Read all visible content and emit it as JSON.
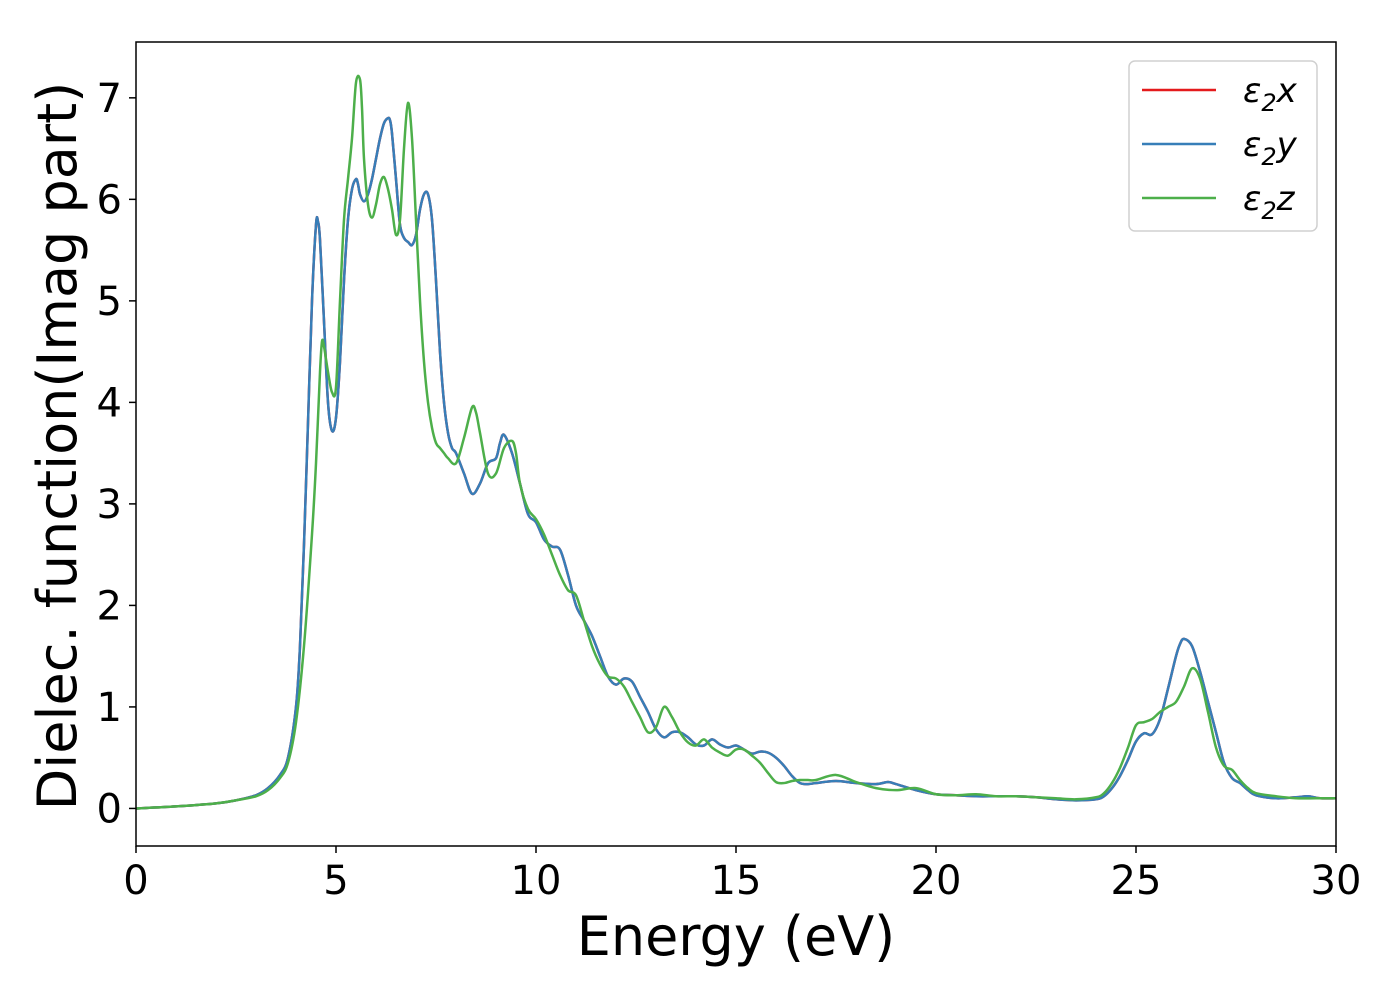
{
  "chart_data": {
    "type": "line",
    "title": "",
    "xlabel": "Energy (eV)",
    "ylabel": "Dielec. function(Imag part)",
    "xlim": [
      0,
      30
    ],
    "ylim": [
      -0.37,
      7.55
    ],
    "xticks": [
      0,
      5,
      10,
      15,
      20,
      25,
      30
    ],
    "xtick_labels": [
      "0",
      "5",
      "10",
      "15",
      "20",
      "25",
      "30"
    ],
    "yticks": [
      0,
      1,
      2,
      3,
      4,
      5,
      6,
      7
    ],
    "ytick_labels": [
      "0",
      "1",
      "2",
      "3",
      "4",
      "5",
      "6",
      "7"
    ],
    "grid": false,
    "legend_position": "top-right",
    "series": [
      {
        "name": "ε₂x",
        "legend_base": "ε",
        "legend_sub": "2",
        "legend_suffix": "x",
        "color": "#e41a1c",
        "x": [
          0,
          1,
          2,
          2.5,
          3,
          3.3,
          3.6,
          3.8,
          4.0,
          4.1,
          4.2,
          4.3,
          4.4,
          4.5,
          4.55,
          4.6,
          4.7,
          4.8,
          4.9,
          5.0,
          5.1,
          5.2,
          5.3,
          5.4,
          5.5,
          5.55,
          5.6,
          5.7,
          5.8,
          5.9,
          6.0,
          6.1,
          6.2,
          6.3,
          6.35,
          6.4,
          6.5,
          6.6,
          6.7,
          6.8,
          6.9,
          7.0,
          7.1,
          7.2,
          7.3,
          7.4,
          7.5,
          7.6,
          7.7,
          7.8,
          7.9,
          8.0,
          8.2,
          8.4,
          8.6,
          8.8,
          9.0,
          9.1,
          9.2,
          9.4,
          9.6,
          9.8,
          10.0,
          10.2,
          10.4,
          10.6,
          10.8,
          11.0,
          11.2,
          11.4,
          11.6,
          11.8,
          12.0,
          12.2,
          12.4,
          12.6,
          12.8,
          13.0,
          13.2,
          13.4,
          13.6,
          13.8,
          14.0,
          14.2,
          14.4,
          14.6,
          14.8,
          15.0,
          15.2,
          15.4,
          15.6,
          15.8,
          16.0,
          16.2,
          16.4,
          16.6,
          16.8,
          17.0,
          17.5,
          18.0,
          18.5,
          18.8,
          19.0,
          19.5,
          20.0,
          20.5,
          21.0,
          21.5,
          22.0,
          22.5,
          23.0,
          23.5,
          24.0,
          24.2,
          24.4,
          24.6,
          24.8,
          25.0,
          25.2,
          25.4,
          25.6,
          25.8,
          26.0,
          26.1,
          26.2,
          26.4,
          26.6,
          26.8,
          27.0,
          27.2,
          27.4,
          27.6,
          27.8,
          28.0,
          28.5,
          29.0,
          29.3,
          29.6,
          30
        ],
        "y": [
          0.0,
          0.02,
          0.05,
          0.08,
          0.13,
          0.2,
          0.33,
          0.5,
          1.0,
          1.6,
          2.6,
          3.8,
          5.0,
          5.75,
          5.78,
          5.6,
          4.8,
          4.0,
          3.72,
          3.85,
          4.4,
          5.2,
          5.8,
          6.1,
          6.2,
          6.15,
          6.05,
          5.98,
          6.05,
          6.2,
          6.4,
          6.6,
          6.75,
          6.8,
          6.78,
          6.65,
          6.2,
          5.75,
          5.62,
          5.58,
          5.55,
          5.65,
          5.9,
          6.05,
          6.05,
          5.8,
          5.2,
          4.5,
          4.0,
          3.7,
          3.55,
          3.5,
          3.3,
          3.1,
          3.2,
          3.4,
          3.45,
          3.6,
          3.68,
          3.5,
          3.2,
          2.9,
          2.82,
          2.65,
          2.58,
          2.55,
          2.3,
          2.0,
          1.85,
          1.7,
          1.5,
          1.3,
          1.22,
          1.28,
          1.25,
          1.1,
          0.95,
          0.78,
          0.7,
          0.75,
          0.75,
          0.7,
          0.63,
          0.62,
          0.68,
          0.63,
          0.6,
          0.62,
          0.58,
          0.54,
          0.56,
          0.55,
          0.5,
          0.42,
          0.32,
          0.25,
          0.24,
          0.25,
          0.27,
          0.25,
          0.24,
          0.26,
          0.24,
          0.18,
          0.14,
          0.13,
          0.12,
          0.12,
          0.12,
          0.11,
          0.09,
          0.08,
          0.09,
          0.12,
          0.2,
          0.32,
          0.48,
          0.66,
          0.74,
          0.73,
          0.88,
          1.18,
          1.5,
          1.62,
          1.67,
          1.6,
          1.35,
          1.05,
          0.75,
          0.45,
          0.3,
          0.25,
          0.18,
          0.13,
          0.1,
          0.11,
          0.12,
          0.1,
          0.1
        ]
      },
      {
        "name": "ε₂y",
        "legend_base": "ε",
        "legend_sub": "2",
        "legend_suffix": "y",
        "color": "#377eb8",
        "x": [
          0,
          1,
          2,
          2.5,
          3,
          3.3,
          3.6,
          3.8,
          4.0,
          4.1,
          4.2,
          4.3,
          4.4,
          4.5,
          4.55,
          4.6,
          4.7,
          4.8,
          4.9,
          5.0,
          5.1,
          5.2,
          5.3,
          5.4,
          5.5,
          5.55,
          5.6,
          5.7,
          5.8,
          5.9,
          6.0,
          6.1,
          6.2,
          6.3,
          6.35,
          6.4,
          6.5,
          6.6,
          6.7,
          6.8,
          6.9,
          7.0,
          7.1,
          7.2,
          7.3,
          7.4,
          7.5,
          7.6,
          7.7,
          7.8,
          7.9,
          8.0,
          8.2,
          8.4,
          8.6,
          8.8,
          9.0,
          9.1,
          9.2,
          9.4,
          9.6,
          9.8,
          10.0,
          10.2,
          10.4,
          10.6,
          10.8,
          11.0,
          11.2,
          11.4,
          11.6,
          11.8,
          12.0,
          12.2,
          12.4,
          12.6,
          12.8,
          13.0,
          13.2,
          13.4,
          13.6,
          13.8,
          14.0,
          14.2,
          14.4,
          14.6,
          14.8,
          15.0,
          15.2,
          15.4,
          15.6,
          15.8,
          16.0,
          16.2,
          16.4,
          16.6,
          16.8,
          17.0,
          17.5,
          18.0,
          18.5,
          18.8,
          19.0,
          19.5,
          20.0,
          20.5,
          21.0,
          21.5,
          22.0,
          22.5,
          23.0,
          23.5,
          24.0,
          24.2,
          24.4,
          24.6,
          24.8,
          25.0,
          25.2,
          25.4,
          25.6,
          25.8,
          26.0,
          26.1,
          26.2,
          26.4,
          26.6,
          26.8,
          27.0,
          27.2,
          27.4,
          27.6,
          27.8,
          28.0,
          28.5,
          29.0,
          29.3,
          29.6,
          30
        ],
        "y": [
          0.0,
          0.02,
          0.05,
          0.08,
          0.13,
          0.2,
          0.33,
          0.5,
          1.0,
          1.6,
          2.6,
          3.8,
          5.0,
          5.75,
          5.78,
          5.6,
          4.8,
          4.0,
          3.72,
          3.85,
          4.4,
          5.2,
          5.8,
          6.1,
          6.2,
          6.15,
          6.05,
          5.98,
          6.05,
          6.2,
          6.4,
          6.6,
          6.75,
          6.8,
          6.78,
          6.65,
          6.2,
          5.75,
          5.62,
          5.58,
          5.55,
          5.65,
          5.9,
          6.05,
          6.05,
          5.8,
          5.2,
          4.5,
          4.0,
          3.7,
          3.55,
          3.5,
          3.3,
          3.1,
          3.2,
          3.4,
          3.45,
          3.6,
          3.68,
          3.5,
          3.2,
          2.9,
          2.82,
          2.65,
          2.58,
          2.55,
          2.3,
          2.0,
          1.85,
          1.7,
          1.5,
          1.3,
          1.22,
          1.28,
          1.25,
          1.1,
          0.95,
          0.78,
          0.7,
          0.75,
          0.75,
          0.7,
          0.63,
          0.62,
          0.68,
          0.63,
          0.6,
          0.62,
          0.58,
          0.54,
          0.56,
          0.55,
          0.5,
          0.42,
          0.32,
          0.25,
          0.24,
          0.25,
          0.27,
          0.25,
          0.24,
          0.26,
          0.24,
          0.18,
          0.14,
          0.13,
          0.12,
          0.12,
          0.12,
          0.11,
          0.09,
          0.08,
          0.09,
          0.12,
          0.2,
          0.32,
          0.48,
          0.66,
          0.74,
          0.73,
          0.88,
          1.18,
          1.5,
          1.62,
          1.67,
          1.6,
          1.35,
          1.05,
          0.75,
          0.45,
          0.3,
          0.25,
          0.18,
          0.13,
          0.1,
          0.11,
          0.12,
          0.1,
          0.1
        ]
      },
      {
        "name": "ε₂z",
        "legend_base": "ε",
        "legend_sub": "2",
        "legend_suffix": "z",
        "color": "#4daf4a",
        "x": [
          0,
          1,
          2,
          2.5,
          3,
          3.3,
          3.6,
          3.8,
          4.0,
          4.2,
          4.4,
          4.5,
          4.6,
          4.65,
          4.7,
          4.8,
          4.9,
          5.0,
          5.1,
          5.2,
          5.3,
          5.4,
          5.5,
          5.6,
          5.65,
          5.7,
          5.8,
          5.9,
          6.0,
          6.1,
          6.2,
          6.3,
          6.4,
          6.5,
          6.6,
          6.7,
          6.8,
          6.9,
          7.0,
          7.1,
          7.2,
          7.3,
          7.4,
          7.5,
          7.6,
          7.7,
          7.8,
          8.0,
          8.2,
          8.4,
          8.5,
          8.6,
          8.8,
          9.0,
          9.2,
          9.4,
          9.5,
          9.6,
          9.8,
          10.0,
          10.2,
          10.4,
          10.6,
          10.8,
          11.0,
          11.2,
          11.4,
          11.6,
          11.8,
          12.0,
          12.2,
          12.4,
          12.6,
          12.8,
          13.0,
          13.2,
          13.4,
          13.6,
          13.8,
          14.0,
          14.2,
          14.4,
          14.6,
          14.8,
          15.0,
          15.2,
          15.4,
          15.6,
          15.8,
          16.0,
          16.2,
          16.4,
          16.6,
          16.8,
          17.0,
          17.5,
          18.0,
          18.5,
          19.0,
          19.5,
          20.0,
          20.5,
          21.0,
          21.5,
          22.0,
          22.5,
          23.0,
          23.5,
          24.0,
          24.2,
          24.4,
          24.6,
          24.8,
          25.0,
          25.2,
          25.4,
          25.6,
          25.8,
          26.0,
          26.2,
          26.4,
          26.6,
          26.8,
          27.0,
          27.2,
          27.4,
          27.6,
          27.8,
          28.0,
          28.5,
          29.0,
          29.5,
          30
        ],
        "y": [
          0.0,
          0.02,
          0.05,
          0.08,
          0.12,
          0.18,
          0.3,
          0.45,
          0.85,
          1.6,
          2.7,
          3.4,
          4.3,
          4.6,
          4.55,
          4.3,
          4.1,
          4.15,
          5.0,
          5.8,
          6.2,
          6.6,
          7.15,
          7.18,
          6.9,
          6.4,
          5.95,
          5.82,
          5.95,
          6.15,
          6.22,
          6.1,
          5.9,
          5.65,
          5.8,
          6.5,
          6.95,
          6.6,
          5.8,
          5.0,
          4.4,
          4.0,
          3.75,
          3.6,
          3.55,
          3.5,
          3.45,
          3.4,
          3.65,
          3.95,
          3.9,
          3.7,
          3.3,
          3.3,
          3.55,
          3.62,
          3.5,
          3.2,
          2.95,
          2.85,
          2.7,
          2.5,
          2.3,
          2.15,
          2.1,
          1.85,
          1.6,
          1.42,
          1.3,
          1.28,
          1.2,
          1.05,
          0.9,
          0.75,
          0.8,
          1.0,
          0.9,
          0.75,
          0.65,
          0.62,
          0.68,
          0.6,
          0.55,
          0.52,
          0.58,
          0.58,
          0.52,
          0.45,
          0.35,
          0.26,
          0.25,
          0.27,
          0.28,
          0.28,
          0.28,
          0.33,
          0.26,
          0.2,
          0.18,
          0.2,
          0.14,
          0.13,
          0.14,
          0.12,
          0.12,
          0.11,
          0.1,
          0.09,
          0.11,
          0.15,
          0.25,
          0.4,
          0.6,
          0.82,
          0.85,
          0.88,
          0.95,
          1.0,
          1.05,
          1.2,
          1.38,
          1.28,
          0.95,
          0.6,
          0.42,
          0.38,
          0.28,
          0.2,
          0.15,
          0.12,
          0.1,
          0.1,
          0.1
        ]
      }
    ]
  }
}
